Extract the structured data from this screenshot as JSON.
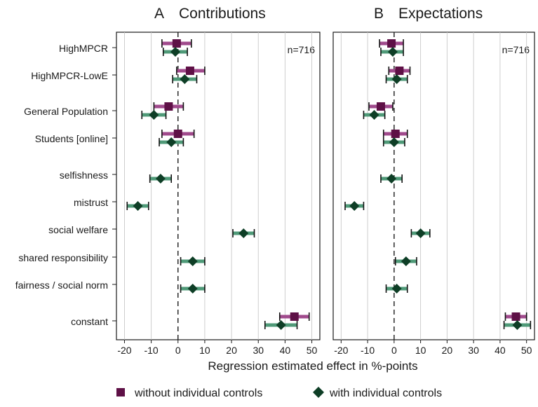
{
  "chart_data": {
    "type": "coefficient-dot-plot",
    "xlabel": "Regression estimated effect in %-points",
    "xlim": [
      -23,
      53
    ],
    "xticks": [
      -20,
      -10,
      0,
      10,
      20,
      30,
      40,
      50
    ],
    "grid": true,
    "reference_line_x": 0,
    "categories": [
      "HighMPCR",
      "HighMPCR-LowE",
      "General Population",
      "Students [online]",
      "selfishness",
      "mistrust",
      "social welfare",
      "shared responsibility",
      "fairness / social norm",
      "constant"
    ],
    "legend": {
      "position": "bottom",
      "items": [
        {
          "label": "without individual controls",
          "marker": "square",
          "color": "#5e1046"
        },
        {
          "label": "with individual controls",
          "marker": "diamond",
          "color": "#0e3e26"
        }
      ]
    },
    "panels": [
      {
        "letter": "A",
        "title": "Contributions",
        "n_label": "n=716",
        "series": [
          {
            "name": "without individual controls",
            "values": [
              {
                "category": "HighMPCR",
                "est": -0.5,
                "lo": -6,
                "hi": 5
              },
              {
                "category": "HighMPCR-LowE",
                "est": 4.5,
                "lo": -0.5,
                "hi": 10
              },
              {
                "category": "General Population",
                "est": -3.5,
                "lo": -9,
                "hi": 2
              },
              {
                "category": "Students [online]",
                "est": 0,
                "lo": -6,
                "hi": 6
              },
              {
                "category": "constant",
                "est": 43.5,
                "lo": 38,
                "hi": 49
              }
            ]
          },
          {
            "name": "with individual controls",
            "values": [
              {
                "category": "HighMPCR",
                "est": -1,
                "lo": -5.5,
                "hi": 3.5
              },
              {
                "category": "HighMPCR-LowE",
                "est": 2.5,
                "lo": -2,
                "hi": 7
              },
              {
                "category": "General Population",
                "est": -9,
                "lo": -13.5,
                "hi": -4.5
              },
              {
                "category": "Students [online]",
                "est": -2.5,
                "lo": -7,
                "hi": 2
              },
              {
                "category": "selfishness",
                "est": -6.5,
                "lo": -10.5,
                "hi": -2.5
              },
              {
                "category": "mistrust",
                "est": -15,
                "lo": -19,
                "hi": -11
              },
              {
                "category": "social welfare",
                "est": 24.5,
                "lo": 20.5,
                "hi": 28.5
              },
              {
                "category": "shared responsibility",
                "est": 5.5,
                "lo": 1,
                "hi": 10
              },
              {
                "category": "fairness / social norm",
                "est": 5.5,
                "lo": 1,
                "hi": 10
              },
              {
                "category": "constant",
                "est": 38.5,
                "lo": 32.5,
                "hi": 44.5
              }
            ]
          }
        ]
      },
      {
        "letter": "B",
        "title": "Expectations",
        "n_label": "n=716",
        "series": [
          {
            "name": "without individual controls",
            "values": [
              {
                "category": "HighMPCR",
                "est": -1,
                "lo": -5.5,
                "hi": 3.5
              },
              {
                "category": "HighMPCR-LowE",
                "est": 2,
                "lo": -2,
                "hi": 6
              },
              {
                "category": "General Population",
                "est": -5,
                "lo": -9.5,
                "hi": -0.5
              },
              {
                "category": "Students [online]",
                "est": 0.5,
                "lo": -4,
                "hi": 5
              },
              {
                "category": "constant",
                "est": 46,
                "lo": 42,
                "hi": 50
              }
            ]
          },
          {
            "name": "with individual controls",
            "values": [
              {
                "category": "HighMPCR",
                "est": -0.5,
                "lo": -5,
                "hi": 3.5
              },
              {
                "category": "HighMPCR-LowE",
                "est": 1,
                "lo": -3,
                "hi": 5
              },
              {
                "category": "General Population",
                "est": -7.5,
                "lo": -11.5,
                "hi": -3.5
              },
              {
                "category": "Students [online]",
                "est": 0,
                "lo": -4,
                "hi": 4
              },
              {
                "category": "selfishness",
                "est": -1,
                "lo": -5,
                "hi": 3
              },
              {
                "category": "mistrust",
                "est": -15,
                "lo": -18.5,
                "hi": -11.5
              },
              {
                "category": "social welfare",
                "est": 10,
                "lo": 6.5,
                "hi": 13.5
              },
              {
                "category": "shared responsibility",
                "est": 4.5,
                "lo": 0.5,
                "hi": 8.5
              },
              {
                "category": "fairness / social norm",
                "est": 1,
                "lo": -3,
                "hi": 5
              },
              {
                "category": "constant",
                "est": 46.5,
                "lo": 41.5,
                "hi": 51.5
              }
            ]
          }
        ]
      }
    ]
  }
}
